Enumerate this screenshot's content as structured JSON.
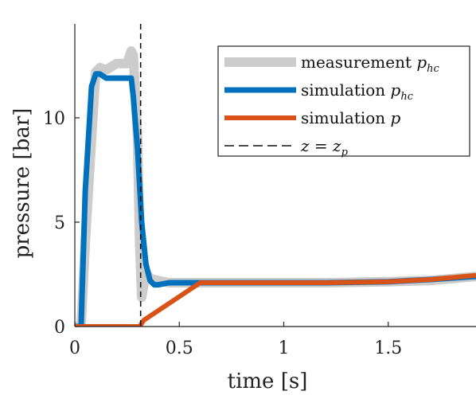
{
  "chart_data": {
    "type": "line",
    "xlabel": "time [s]",
    "ylabel": "pressure [bar]",
    "xlim": [
      0,
      1.92
    ],
    "ylim": [
      0,
      14.5
    ],
    "xticks": [
      0,
      0.5,
      1,
      1.5
    ],
    "xtick_labels": [
      "0",
      "0.5",
      "1",
      "1.5"
    ],
    "yticks": [
      0,
      5,
      10
    ],
    "ytick_labels": [
      "0",
      "5",
      "10"
    ],
    "grid": false,
    "legend_position": "top-right",
    "vline": {
      "x": 0.315,
      "label_parts": [
        "z",
        " = ",
        "z",
        "p"
      ]
    },
    "series": [
      {
        "name": "measurement p_hc",
        "label_parts": [
          "measurement ",
          "p",
          "hc"
        ],
        "color": "#cccccc",
        "x": [
          0,
          0.03,
          0.05,
          0.08,
          0.1,
          0.12,
          0.15,
          0.2,
          0.25,
          0.27,
          0.28,
          0.3,
          0.31,
          0.32,
          0.34,
          0.36,
          0.4,
          0.45,
          0.5,
          0.6,
          0.8,
          1.0,
          1.2,
          1.5,
          1.7,
          1.92
        ],
        "y": [
          0,
          0,
          4,
          9,
          12.2,
          12.4,
          12.3,
          12.6,
          12.6,
          13.2,
          13,
          9,
          4,
          1.4,
          2.6,
          2.3,
          2.2,
          2.1,
          2.1,
          2.1,
          2.1,
          2.1,
          2.1,
          2.15,
          2.2,
          2.4
        ]
      },
      {
        "name": "simulation p_hc",
        "label_parts": [
          "simulation ",
          "p",
          "hc"
        ],
        "color": "#0072bd",
        "x": [
          0,
          0.03,
          0.05,
          0.08,
          0.1,
          0.12,
          0.15,
          0.2,
          0.27,
          0.28,
          0.3,
          0.32,
          0.34,
          0.36,
          0.38,
          0.4,
          0.45,
          0.5,
          0.6,
          0.8,
          1.0,
          1.2,
          1.5,
          1.7,
          1.92
        ],
        "y": [
          0,
          0,
          6.5,
          11.5,
          12.1,
          12.1,
          11.9,
          11.9,
          11.9,
          11,
          8.5,
          5,
          3,
          2.2,
          2.0,
          2.0,
          2.1,
          2.1,
          2.1,
          2.1,
          2.1,
          2.1,
          2.15,
          2.25,
          2.4
        ]
      },
      {
        "name": "simulation p",
        "label_parts": [
          "simulation ",
          "p"
        ],
        "color": "#d95319",
        "x": [
          0,
          0.31,
          0.33,
          0.6,
          0.8,
          1.0,
          1.2,
          1.5,
          1.7,
          1.92
        ],
        "y": [
          0,
          0,
          0.3,
          2.1,
          2.1,
          2.1,
          2.1,
          2.15,
          2.25,
          2.45
        ]
      }
    ]
  }
}
